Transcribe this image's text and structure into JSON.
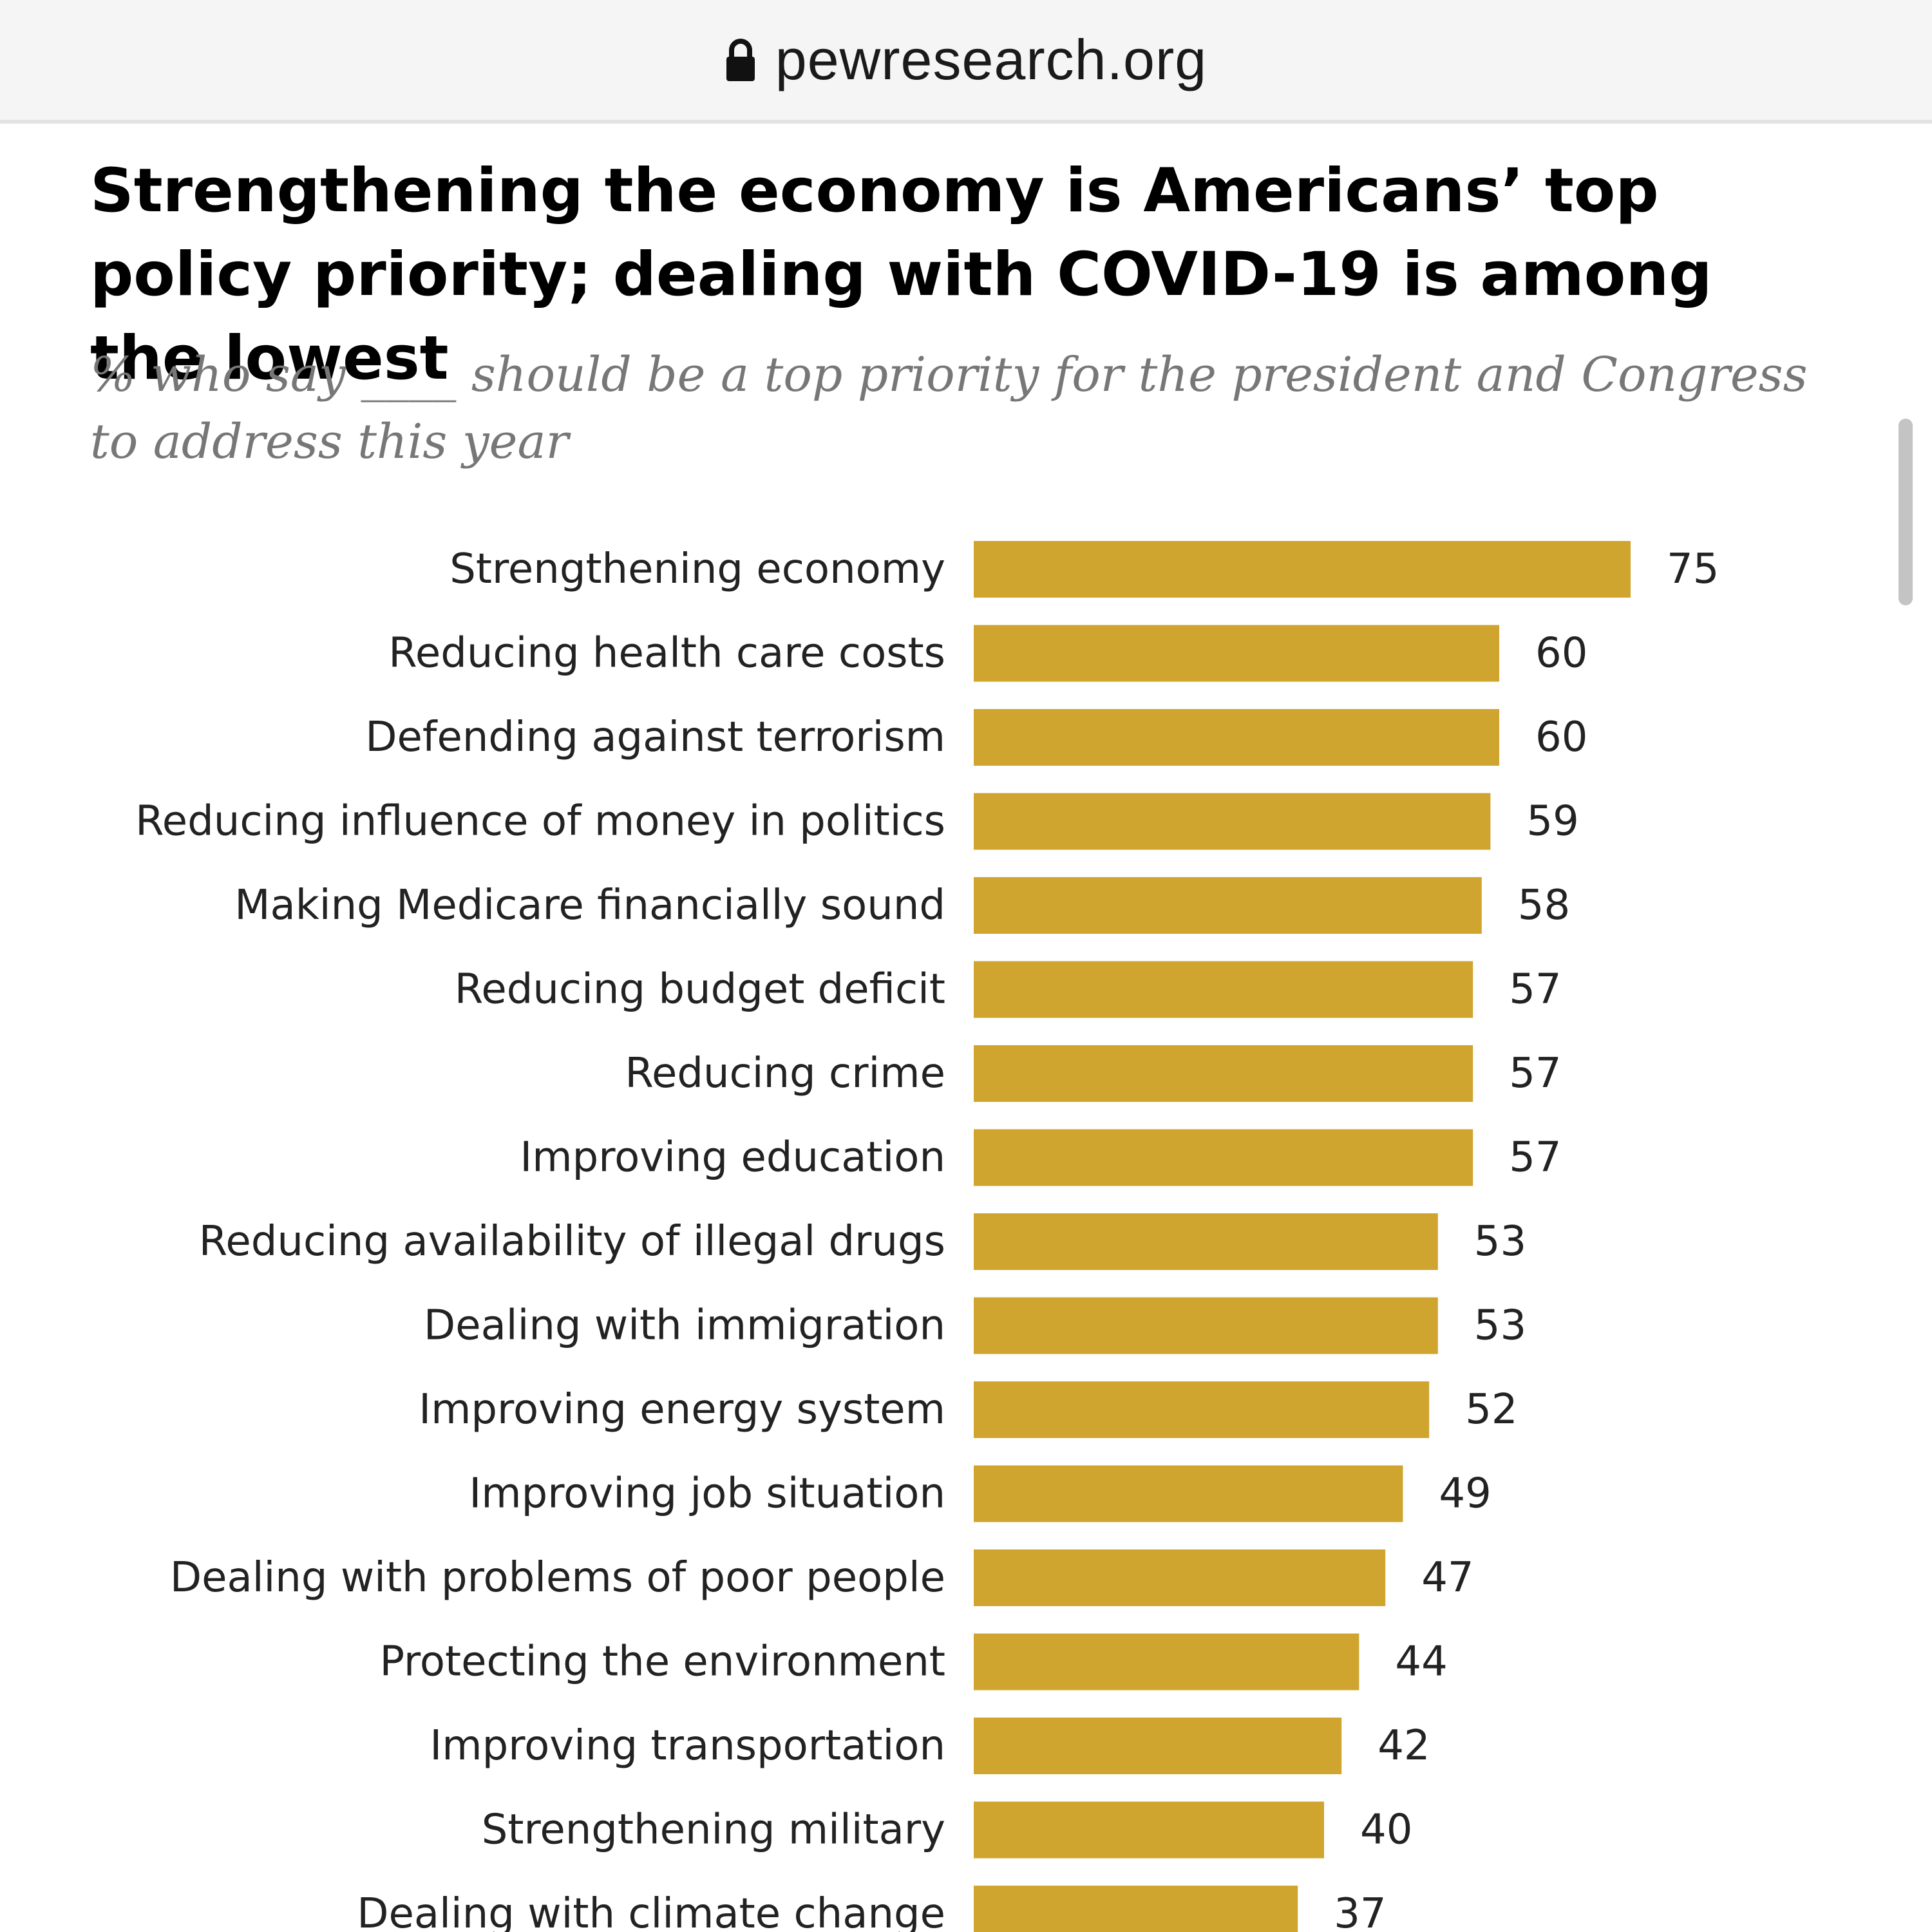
{
  "browser": {
    "url": "pewresearch.org",
    "lock_icon": "lock-icon"
  },
  "colors": {
    "bar": "#cfa52f",
    "text": "#222222",
    "subtitle": "#777777"
  },
  "chart_data": {
    "type": "bar",
    "orientation": "horizontal",
    "title": "Strengthening the economy is Americans’ top policy priority; dealing with COVID-19 is among the lowest",
    "subtitle": "% who say ____ should be a top priority for the president and Congress to address this year",
    "categories": [
      "Strengthening economy",
      "Reducing health care costs",
      "Defending against terrorism",
      "Reducing influence of money in politics",
      "Making Medicare financially sound",
      "Reducing budget deficit",
      "Reducing crime",
      "Improving education",
      "Reducing availability of illegal drugs",
      "Dealing with immigration",
      "Improving energy system",
      "Improving job situation",
      "Dealing with problems of poor people",
      "Protecting the environment",
      "Improving transportation",
      "Strengthening military",
      "Dealing with climate change"
    ],
    "values": [
      75,
      60,
      60,
      59,
      58,
      57,
      57,
      57,
      53,
      53,
      52,
      49,
      47,
      44,
      42,
      40,
      37
    ],
    "xlim": [
      0,
      100
    ],
    "xlabel": "",
    "ylabel": "",
    "grid": false,
    "legend": "none"
  }
}
